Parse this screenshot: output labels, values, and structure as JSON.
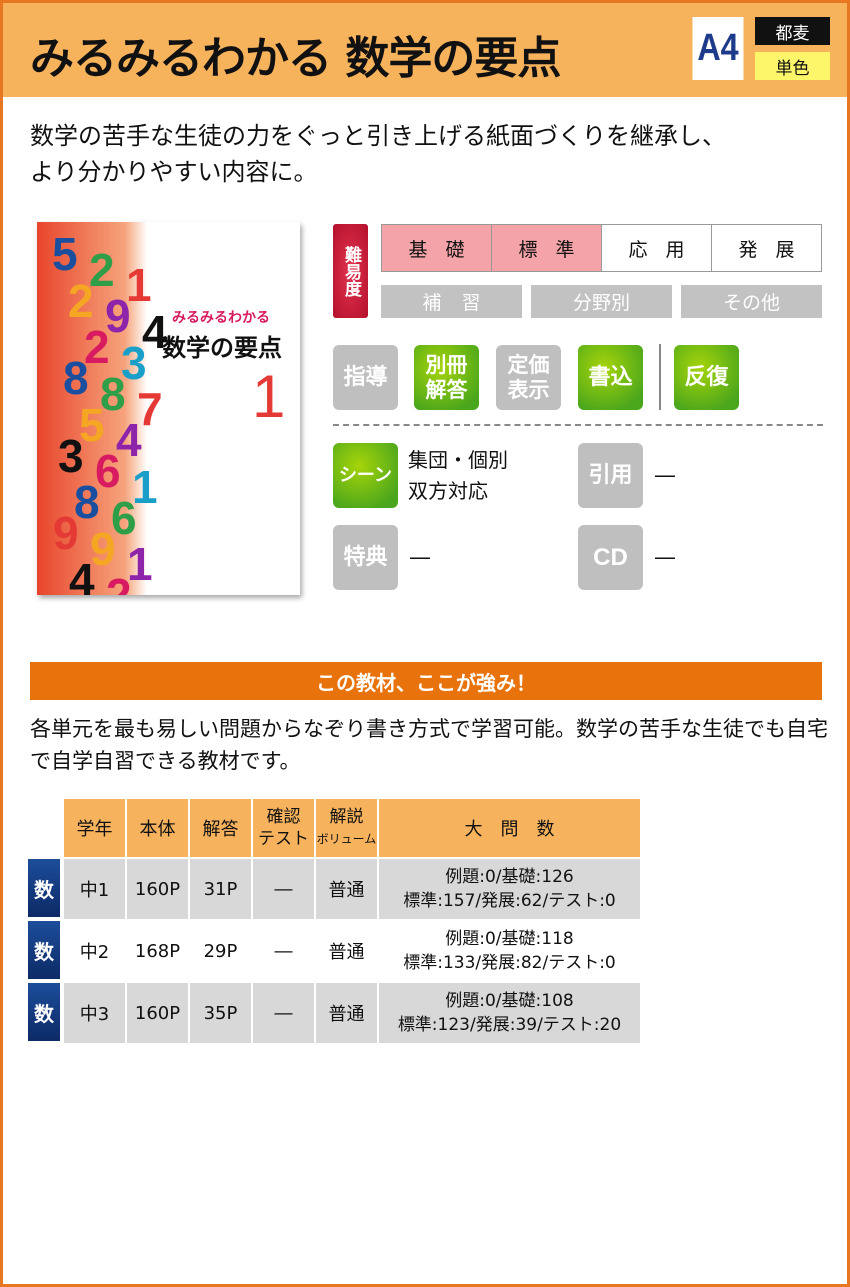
{
  "header": {
    "title": "みるみるわかる 数学の要点",
    "size": "A4",
    "region_tag": "都麦",
    "color_tag": "単色"
  },
  "intro": [
    "数学の苦手な生徒の力をぐっと引き上げる紙面づくりを継承し、",
    "より分かりやすい内容に。"
  ],
  "cover": {
    "series": "みるみるわかる",
    "title": "数学の要点",
    "volume": "1",
    "digits": [
      "5",
      "2",
      "1",
      "2",
      "9",
      "4",
      "2",
      "3",
      "8",
      "8",
      "7",
      "5",
      "4",
      "3",
      "6",
      "1",
      "8",
      "6",
      "9",
      "9",
      "1",
      "4",
      "2"
    ]
  },
  "difficulty": {
    "label": "難易度",
    "levels": [
      {
        "label": "基礎",
        "active": true
      },
      {
        "label": "標準",
        "active": true
      },
      {
        "label": "応用",
        "active": false
      },
      {
        "label": "発展",
        "active": false
      }
    ],
    "types": [
      "補習",
      "分野別",
      "その他"
    ],
    "active_color": "#f4a4a8"
  },
  "features": [
    {
      "label": "指導",
      "active": false
    },
    {
      "label": "別冊解答",
      "active": true
    },
    {
      "label": "定価表示",
      "active": false
    },
    {
      "label": "書込",
      "active": true
    },
    {
      "label": "反復",
      "active": true
    }
  ],
  "info": {
    "scene": {
      "label": "シーン",
      "value1": "集団・個別",
      "value2": "双方対応"
    },
    "quote": {
      "label": "引用",
      "value": "―"
    },
    "bonus": {
      "label": "特典",
      "value": "―"
    },
    "cd": {
      "label": "CD",
      "value": "―"
    }
  },
  "strength": {
    "heading": "この教材、ここが強み！",
    "text": "各単元を最も易しい問題からなぞり書き方式で学習可能。数学の苦手な生徒でも自宅で自学自習できる教材です。"
  },
  "table": {
    "headers": [
      "学年",
      "本体",
      "解答",
      "確認テスト",
      "解説ボリューム",
      "大　問　数"
    ],
    "header_check": [
      "確認",
      "テスト"
    ],
    "header_vol": [
      "解説",
      "ボリューム"
    ],
    "rows": [
      {
        "subject": "数",
        "grade": "中1",
        "body": "160P",
        "answer": "31P",
        "test": "―",
        "volume": "普通",
        "q1": "例題:0/基礎:126",
        "q2": "標準:157/発展:62/テスト:0"
      },
      {
        "subject": "数",
        "grade": "中2",
        "body": "168P",
        "answer": "29P",
        "test": "―",
        "volume": "普通",
        "q1": "例題:0/基礎:118",
        "q2": "標準:133/発展:82/テスト:0"
      },
      {
        "subject": "数",
        "grade": "中3",
        "body": "160P",
        "answer": "35P",
        "test": "―",
        "volume": "普通",
        "q1": "例題:0/基礎:108",
        "q2": "標準:123/発展:39/テスト:20"
      }
    ]
  },
  "colors": {
    "border": "#e87722",
    "header_bg": "#f7b35c",
    "accent": "#e8730c",
    "green": "#6cbf14",
    "gray": "#bfbfbf",
    "subject_tag": "#153f86"
  }
}
